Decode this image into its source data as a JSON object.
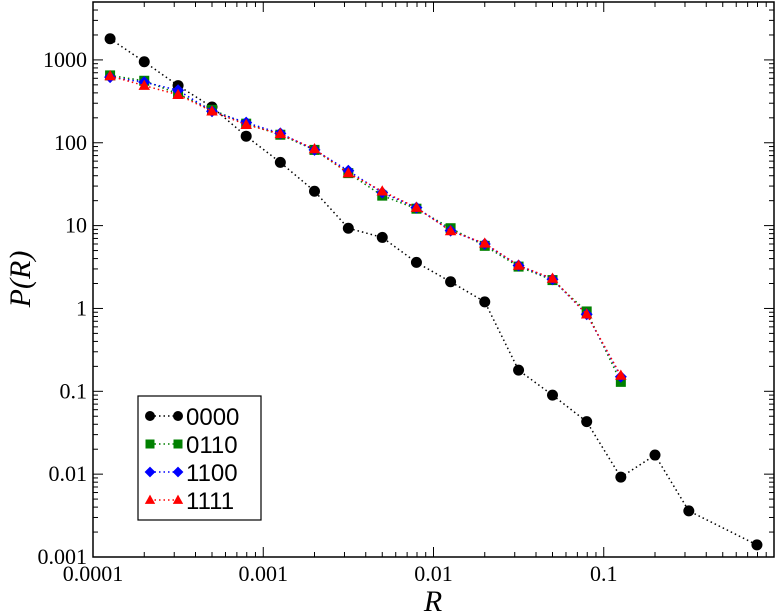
{
  "chart_data": {
    "type": "line",
    "title": "",
    "xlabel": "R",
    "ylabel": "P(R)",
    "xscale": "log",
    "yscale": "log",
    "xlim": [
      0.0001,
      1
    ],
    "ylim": [
      0.001,
      5000
    ],
    "grid": false,
    "legend_position": "bottom-left",
    "x_ticks": [
      {
        "value": 0.0001,
        "label": "0.0001"
      },
      {
        "value": 0.001,
        "label": "0.001"
      },
      {
        "value": 0.01,
        "label": "0.01"
      },
      {
        "value": 0.1,
        "label": "0.1"
      }
    ],
    "y_ticks": [
      {
        "value": 0.001,
        "label": "0.001"
      },
      {
        "value": 0.01,
        "label": "0.01"
      },
      {
        "value": 0.1,
        "label": "0.1"
      },
      {
        "value": 1,
        "label": "1"
      },
      {
        "value": 10,
        "label": "10"
      },
      {
        "value": 100,
        "label": "100"
      },
      {
        "value": 1000,
        "label": "1000"
      }
    ],
    "series": [
      {
        "name": "0000",
        "color": "#000000",
        "marker": "circle",
        "x": [
          0.000126,
          0.0002,
          0.000316,
          0.0005,
          0.000794,
          0.00126,
          0.002,
          0.00316,
          0.005,
          0.00794,
          0.0126,
          0.02,
          0.0316,
          0.05,
          0.0794,
          0.126,
          0.2,
          0.316,
          0.794
        ],
        "y": [
          1800,
          950,
          490,
          270,
          120,
          58,
          26,
          9.3,
          7.2,
          3.6,
          2.1,
          1.2,
          0.18,
          0.09,
          0.043,
          0.0092,
          0.017,
          0.0036,
          0.0014
        ]
      },
      {
        "name": "0110",
        "color": "#008000",
        "marker": "square",
        "x": [
          0.000126,
          0.0002,
          0.000316,
          0.0005,
          0.000794,
          0.00126,
          0.002,
          0.00316,
          0.005,
          0.00794,
          0.0126,
          0.02,
          0.0316,
          0.05,
          0.0794,
          0.126
        ],
        "y": [
          650,
          560,
          390,
          250,
          170,
          125,
          82,
          43,
          23,
          16,
          9.3,
          5.7,
          3.2,
          2.2,
          0.92,
          0.13
        ]
      },
      {
        "name": "1100",
        "color": "#0000ff",
        "marker": "diamond",
        "x": [
          0.000126,
          0.0002,
          0.000316,
          0.0005,
          0.000794,
          0.00126,
          0.002,
          0.00316,
          0.005,
          0.00794,
          0.0126,
          0.02,
          0.0316,
          0.05,
          0.0794,
          0.126
        ],
        "y": [
          620,
          540,
          430,
          240,
          175,
          130,
          82,
          46,
          25,
          16.5,
          8.7,
          6.0,
          3.3,
          2.25,
          0.85,
          0.15
        ]
      },
      {
        "name": "1111",
        "color": "#ff0000",
        "marker": "triangle",
        "x": [
          0.000126,
          0.0002,
          0.000316,
          0.0005,
          0.000794,
          0.00126,
          0.002,
          0.00316,
          0.005,
          0.00794,
          0.0126,
          0.02,
          0.0316,
          0.05,
          0.0794,
          0.126
        ],
        "y": [
          640,
          490,
          380,
          240,
          165,
          128,
          84,
          43,
          26,
          16.5,
          8.6,
          6.1,
          3.3,
          2.3,
          0.85,
          0.155
        ]
      }
    ]
  }
}
